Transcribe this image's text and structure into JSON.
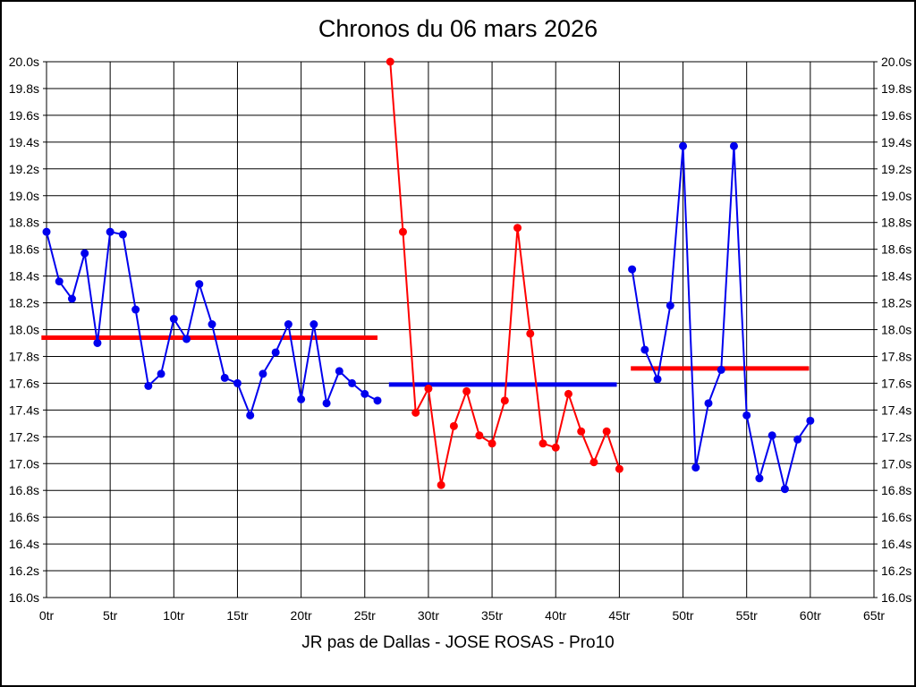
{
  "title": "Chronos du 06 mars 2026",
  "caption": "JR pas de Dallas - JOSE ROSAS - Pro10",
  "chart_data": {
    "type": "line",
    "title": "Chronos du 06 mars 2026",
    "caption": "JR pas de Dallas - JOSE ROSAS - Pro10",
    "grid": true,
    "x_axis": {
      "unit": "tr",
      "min": 0,
      "max": 65,
      "tick_step": 5,
      "tick_labels": [
        "0tr",
        "5tr",
        "10tr",
        "15tr",
        "20tr",
        "25tr",
        "30tr",
        "35tr",
        "40tr",
        "45tr",
        "50tr",
        "55tr",
        "60tr",
        "65tr"
      ]
    },
    "y_axis": {
      "unit": "s",
      "min": 16.0,
      "max": 20.0,
      "tick_step": 0.2,
      "sides": "both",
      "tick_labels": [
        "20.0s",
        "19.8s",
        "19.6s",
        "19.4s",
        "19.2s",
        "19.0s",
        "18.8s",
        "18.6s",
        "18.4s",
        "18.2s",
        "18.0s",
        "17.8s",
        "17.6s",
        "17.4s",
        "17.2s",
        "17.0s",
        "16.8s",
        "16.6s",
        "16.4s",
        "16.2s",
        "16.0s"
      ]
    },
    "series": [
      {
        "name": "stint-1-blue",
        "color": "#0000ee",
        "x_start": 0,
        "values": [
          18.73,
          18.36,
          18.23,
          18.57,
          17.9,
          18.73,
          18.71,
          18.15,
          17.58,
          17.67,
          18.08,
          17.93,
          18.34,
          18.04,
          17.64,
          17.6,
          17.36,
          17.67,
          17.83,
          18.04,
          17.48,
          18.04,
          17.45,
          17.69,
          17.6,
          17.52,
          17.47
        ]
      },
      {
        "name": "stint-2-red",
        "color": "#ff0000",
        "x_start": 27,
        "values": [
          20.0,
          18.73,
          17.38,
          17.56,
          16.84,
          17.28,
          17.54,
          17.21,
          17.15,
          17.47,
          18.76,
          17.97,
          17.15,
          17.12,
          17.52,
          17.24,
          17.01,
          17.24,
          16.96
        ]
      },
      {
        "name": "stint-3-blue",
        "color": "#0000ee",
        "x_start": 46,
        "values": [
          18.45,
          17.85,
          17.63,
          18.18,
          19.37,
          16.97,
          17.45,
          17.7,
          19.37,
          17.36,
          16.89,
          17.21,
          16.81,
          17.18,
          17.32
        ]
      }
    ],
    "average_lines": [
      {
        "name": "average-stint-1",
        "color": "#ff0000",
        "value": 17.94,
        "x_from": -0.4,
        "x_to": 26.0
      },
      {
        "name": "average-stint-2",
        "color": "#0000ee",
        "value": 17.59,
        "x_from": 26.9,
        "x_to": 44.8
      },
      {
        "name": "average-stint-3",
        "color": "#ff0000",
        "value": 17.71,
        "x_from": 45.9,
        "x_to": 59.9
      }
    ]
  }
}
